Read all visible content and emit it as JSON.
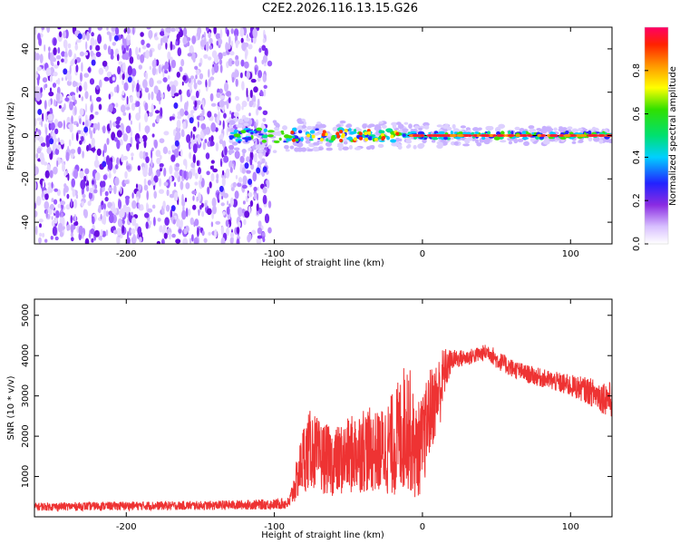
{
  "title": "C2E2.2026.116.13.15.G26",
  "chart_data": [
    {
      "type": "heatmap",
      "xlabel": "Height of straight line (km)",
      "ylabel": "Frequency (Hz)",
      "xlim": [
        -262,
        128
      ],
      "ylim": [
        -50,
        50
      ],
      "xticks": [
        -200,
        -100,
        0,
        100
      ],
      "yticks": [
        -40,
        -20,
        0,
        20,
        40
      ],
      "noise_region_x": [
        -262,
        -103
      ],
      "signal_track": {
        "x_start": -130,
        "x_end": 128,
        "frequency": 0,
        "spread_hz": [
          8,
          3
        ]
      },
      "colorbar": {
        "label": "Normalized spectral amplitude",
        "range": [
          0,
          1
        ],
        "ticks": [
          0.0,
          0.2,
          0.4,
          0.6,
          0.8
        ]
      }
    },
    {
      "type": "line",
      "xlabel": "Height of straight line (km)",
      "ylabel": "SNR (10 * v/v)",
      "xlim": [
        -262,
        128
      ],
      "ylim": [
        0,
        5400
      ],
      "xticks": [
        -200,
        -100,
        0,
        100
      ],
      "yticks": [
        1000,
        2000,
        3000,
        4000,
        5000
      ],
      "color": "#ee3333",
      "envelope": {
        "x": [
          -262,
          -200,
          -150,
          -100,
          -90,
          -85,
          -80,
          -75,
          -70,
          -60,
          -50,
          -40,
          -30,
          -20,
          -15,
          -10,
          -5,
          0,
          5,
          10,
          13,
          15,
          20,
          30,
          40,
          45,
          50,
          60,
          70,
          80,
          90,
          100,
          110,
          120,
          128
        ],
        "mean": [
          250,
          270,
          280,
          310,
          340,
          900,
          1500,
          1700,
          1500,
          1350,
          1500,
          1700,
          1600,
          1800,
          2000,
          2400,
          1600,
          1800,
          2600,
          3000,
          3300,
          3600,
          3900,
          3950,
          4050,
          4100,
          3900,
          3700,
          3550,
          3450,
          3350,
          3250,
          3150,
          3000,
          2900
        ],
        "spread": [
          100,
          110,
          110,
          130,
          150,
          500,
          900,
          1000,
          900,
          850,
          950,
          1100,
          1000,
          1300,
          1500,
          1700,
          1200,
          1200,
          1100,
          900,
          900,
          600,
          250,
          200,
          200,
          220,
          230,
          230,
          230,
          230,
          250,
          280,
          320,
          400,
          450
        ]
      }
    }
  ]
}
